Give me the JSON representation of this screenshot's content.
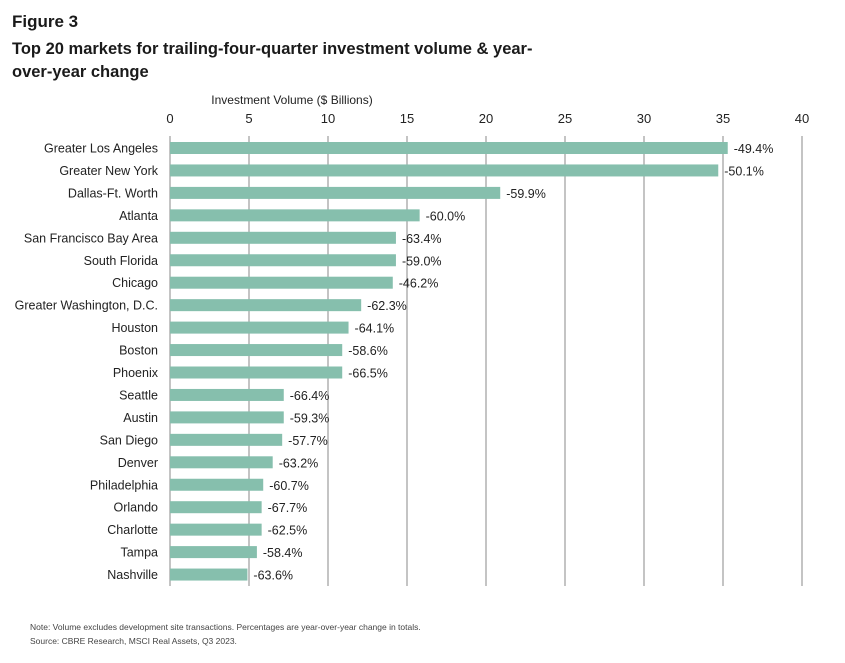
{
  "figure_label": "Figure 3",
  "title": "Top 20 markets for trailing-four-quarter investment volume & year-over-year change",
  "note": "Note: Volume excludes development site transactions. Percentages are year-over-year change in totals.",
  "source": "Source: CBRE Research, MSCI Real Assets, Q3 2023.",
  "colors": {
    "bar": "#86bfad",
    "grid": "#8a8a8a"
  },
  "chart_data": {
    "type": "bar",
    "orientation": "horizontal",
    "xlabel": "Investment Volume ($ Billions)",
    "xlim": [
      0,
      40
    ],
    "xticks": [
      0,
      5,
      10,
      15,
      20,
      25,
      30,
      35,
      40
    ],
    "grid": true,
    "categories": [
      "Greater Los Angeles",
      "Greater New York",
      "Dallas-Ft. Worth",
      "Atlanta",
      "San Francisco Bay Area",
      "South Florida",
      "Chicago",
      "Greater Washington, D.C.",
      "Houston",
      "Boston",
      "Phoenix",
      "Seattle",
      "Austin",
      "San Diego",
      "Denver",
      "Philadelphia",
      "Orlando",
      "Charlotte",
      "Tampa",
      "Nashville"
    ],
    "values": [
      35.3,
      34.7,
      20.9,
      15.8,
      14.3,
      14.3,
      14.1,
      12.1,
      11.3,
      10.9,
      10.9,
      7.2,
      7.2,
      7.1,
      6.5,
      5.9,
      5.8,
      5.8,
      5.5,
      4.9
    ],
    "labels": [
      "-49.4%",
      "-50.1%",
      "-59.9%",
      "-60.0%",
      "-63.4%",
      "-59.0%",
      "-46.2%",
      "-62.3%",
      "-64.1%",
      "-58.6%",
      "-66.5%",
      "-66.4%",
      "-59.3%",
      "-57.7%",
      "-63.2%",
      "-60.7%",
      "-67.7%",
      "-62.5%",
      "-58.4%",
      "-63.6%"
    ]
  }
}
